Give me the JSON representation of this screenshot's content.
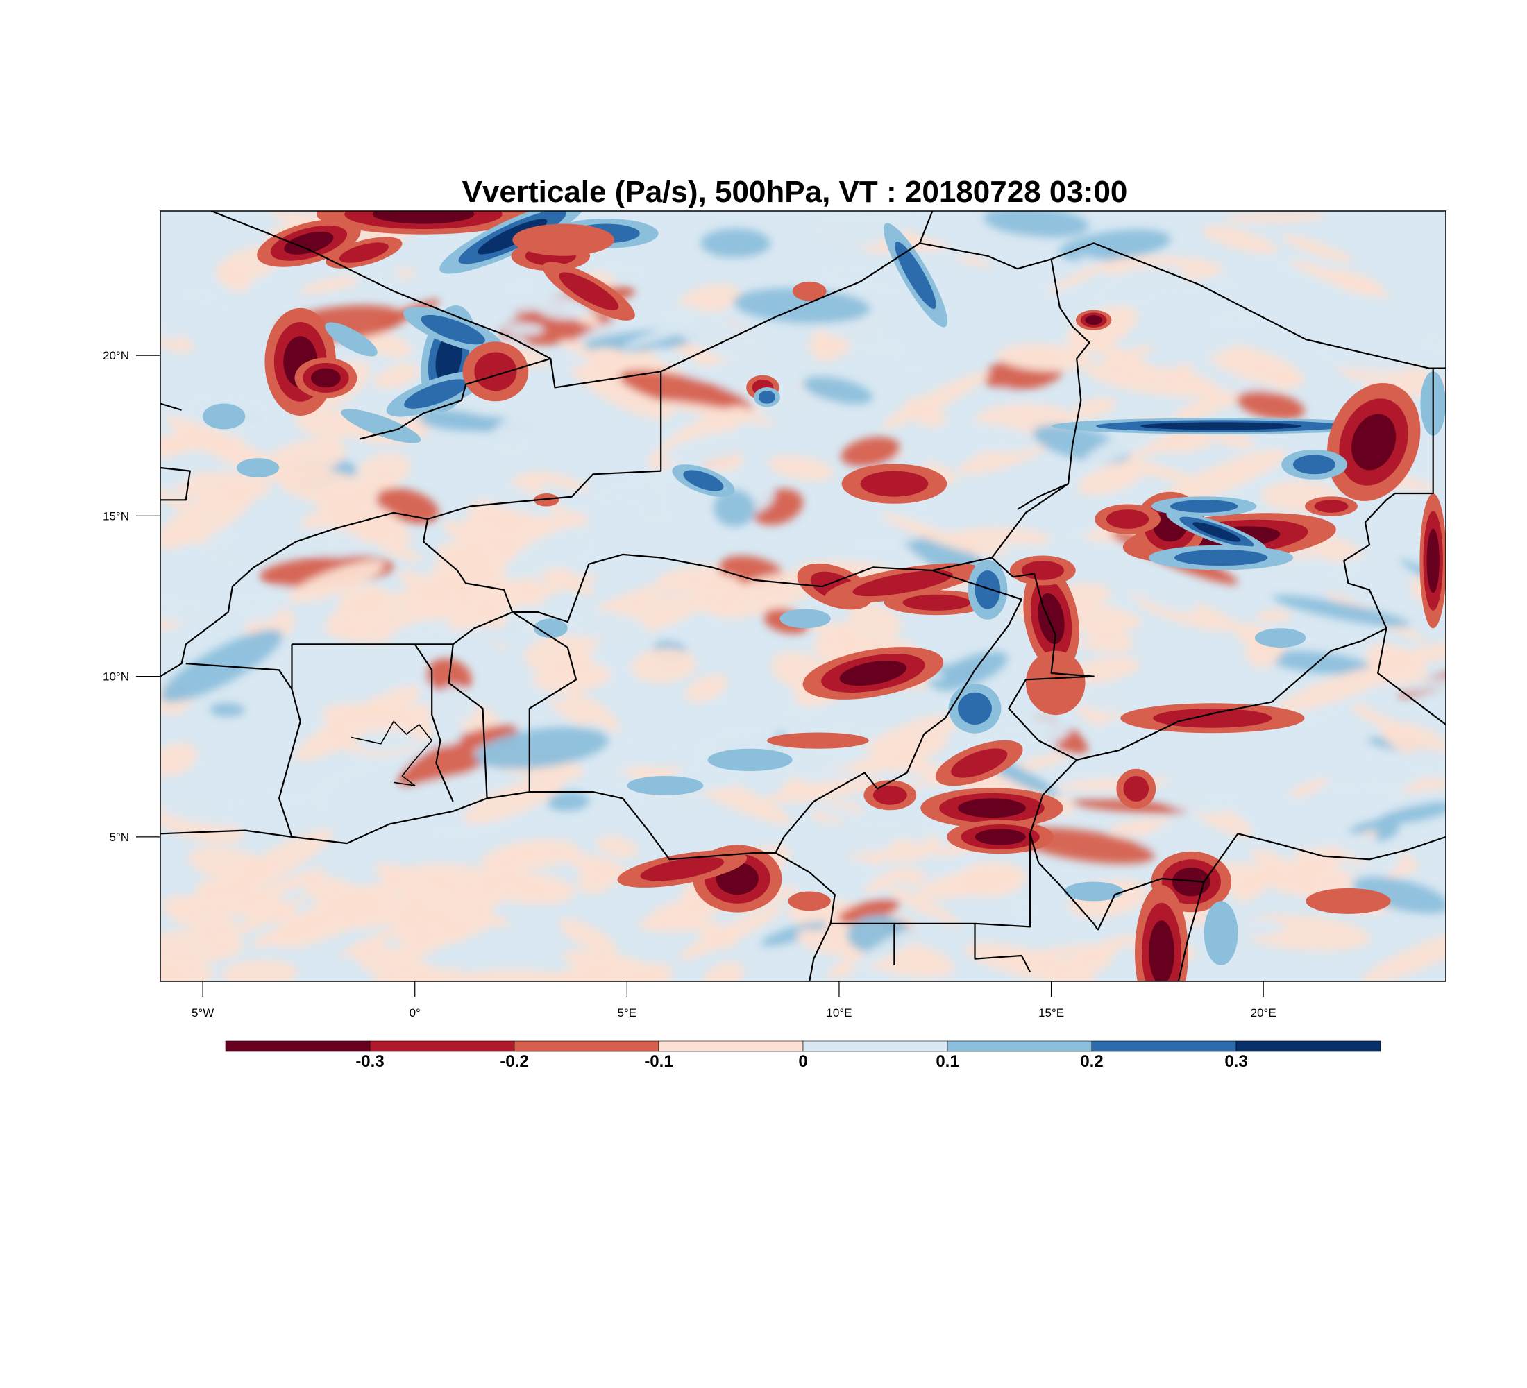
{
  "title": "Vverticale (Pa/s), 500hPa, VT : 20180728  03:00",
  "colors": {
    "background": "#ffffff",
    "frame": "#000000",
    "border": "#000000",
    "levels": [
      "#67001f",
      "#b2182b",
      "#d6604d",
      "#fbe0d3",
      "#d9e8f2",
      "#8cbfdc",
      "#2d6cac",
      "#08306b"
    ]
  },
  "map": {
    "projection": "lat-lon",
    "lon_range": [
      -6,
      24.3
    ],
    "lat_range": [
      0.5,
      24.5
    ],
    "lon_ticks": [
      {
        "value": -5,
        "label": "5°W"
      },
      {
        "value": 0,
        "label": "0°"
      },
      {
        "value": 5,
        "label": "5°E"
      },
      {
        "value": 10,
        "label": "10°E"
      },
      {
        "value": 15,
        "label": "15°E"
      },
      {
        "value": 20,
        "label": "20°E"
      }
    ],
    "lat_ticks": [
      {
        "value": 5,
        "label": "5°N"
      },
      {
        "value": 10,
        "label": "10°N"
      },
      {
        "value": 15,
        "label": "15°N"
      },
      {
        "value": 20,
        "label": "20°N"
      }
    ]
  },
  "colorbar": {
    "bounds": [
      -0.4,
      -0.3,
      -0.2,
      -0.1,
      0,
      0.1,
      0.2,
      0.3,
      0.4
    ],
    "labels": [
      "-0.3",
      "-0.2",
      "-0.1",
      "0",
      "0.1",
      "0.2",
      "0.3"
    ]
  },
  "field_features": [
    {
      "type": "patch",
      "lon": -2.7,
      "lat": 19.8,
      "value": -0.35,
      "rx": 0.4,
      "ry": 0.8,
      "rot": 0
    },
    {
      "type": "patch",
      "lon": -2.1,
      "lat": 19.3,
      "value": -0.32,
      "rx": 0.35,
      "ry": 0.3,
      "rot": 0
    },
    {
      "type": "patch",
      "lon": -2.5,
      "lat": 23.5,
      "value": -0.32,
      "rx": 0.6,
      "ry": 0.3,
      "rot": -15
    },
    {
      "type": "patch",
      "lon": -1.2,
      "lat": 23.2,
      "value": -0.22,
      "rx": 0.6,
      "ry": 0.25,
      "rot": -15
    },
    {
      "type": "patch",
      "lon": 0.2,
      "lat": 24.4,
      "value": -0.32,
      "rx": 1.2,
      "ry": 0.3,
      "rot": 0
    },
    {
      "type": "patch",
      "lon": 0.8,
      "lat": 19.9,
      "value": 0.32,
      "rx": 0.3,
      "ry": 0.8,
      "rot": 10
    },
    {
      "type": "patch",
      "lon": 0.5,
      "lat": 18.8,
      "value": 0.2,
      "rx": 0.8,
      "ry": 0.3,
      "rot": -20
    },
    {
      "type": "patch",
      "lon": 0.9,
      "lat": 20.8,
      "value": 0.2,
      "rx": 0.8,
      "ry": 0.3,
      "rot": 20
    },
    {
      "type": "patch",
      "lon": -1.5,
      "lat": 20.5,
      "value": 0.15,
      "rx": 0.7,
      "ry": 0.3,
      "rot": 30
    },
    {
      "type": "patch",
      "lon": -0.8,
      "lat": 17.8,
      "value": 0.15,
      "rx": 1.0,
      "ry": 0.3,
      "rot": 20
    },
    {
      "type": "patch",
      "lon": 2.3,
      "lat": 23.7,
      "value": 0.32,
      "rx": 0.9,
      "ry": 0.25,
      "rot": -25
    },
    {
      "type": "patch",
      "lon": 4.5,
      "lat": 23.8,
      "value": 0.25,
      "rx": 0.8,
      "ry": 0.3,
      "rot": 0
    },
    {
      "type": "patch",
      "lon": 3.2,
      "lat": 23.1,
      "value": -0.25,
      "rx": 0.6,
      "ry": 0.3,
      "rot": 0
    },
    {
      "type": "patch",
      "lon": 4.1,
      "lat": 22.0,
      "value": -0.22,
      "rx": 0.8,
      "ry": 0.3,
      "rot": 30
    },
    {
      "type": "patch",
      "lon": 1.9,
      "lat": 19.5,
      "value": -0.22,
      "rx": 0.5,
      "ry": 0.6,
      "rot": 0
    },
    {
      "type": "patch",
      "lon": 3.5,
      "lat": 23.6,
      "value": -0.18,
      "rx": 1.2,
      "ry": 0.5,
      "rot": 0
    },
    {
      "type": "patch",
      "lon": 9.3,
      "lat": 22.0,
      "value": -0.15,
      "rx": 0.4,
      "ry": 0.3,
      "rot": 0
    },
    {
      "type": "patch",
      "lon": 11.8,
      "lat": 22.5,
      "value": 0.2,
      "rx": 0.2,
      "ry": 1.2,
      "rot": -30
    },
    {
      "type": "patch",
      "lon": 16.0,
      "lat": 21.1,
      "value": -0.3,
      "rx": 0.2,
      "ry": 0.15,
      "rot": 0
    },
    {
      "type": "patch",
      "lon": 8.2,
      "lat": 19.0,
      "value": -0.25,
      "rx": 0.25,
      "ry": 0.25,
      "rot": 0
    },
    {
      "type": "patch",
      "lon": 8.3,
      "lat": 18.7,
      "value": 0.22,
      "rx": 0.2,
      "ry": 0.2,
      "rot": 0
    },
    {
      "type": "patch",
      "lon": 19.0,
      "lat": 17.8,
      "value": 0.33,
      "rx": 1.9,
      "ry": 0.12,
      "rot": 0
    },
    {
      "type": "patch",
      "lon": 22.6,
      "lat": 17.3,
      "value": -0.32,
      "rx": 0.5,
      "ry": 0.9,
      "rot": 20
    },
    {
      "type": "patch",
      "lon": 19.2,
      "lat": 14.3,
      "value": -0.33,
      "rx": 1.2,
      "ry": 0.35,
      "rot": -5
    },
    {
      "type": "patch",
      "lon": 17.8,
      "lat": 14.7,
      "value": -0.32,
      "rx": 0.4,
      "ry": 0.5,
      "rot": 0
    },
    {
      "type": "patch",
      "lon": 18.9,
      "lat": 14.5,
      "value": 0.3,
      "rx": 0.6,
      "ry": 0.15,
      "rot": 20
    },
    {
      "type": "patch",
      "lon": 19.0,
      "lat": 13.7,
      "value": 0.28,
      "rx": 1.1,
      "ry": 0.25,
      "rot": 0
    },
    {
      "type": "patch",
      "lon": 18.6,
      "lat": 15.3,
      "value": 0.25,
      "rx": 0.8,
      "ry": 0.2,
      "rot": 0
    },
    {
      "type": "patch",
      "lon": 16.8,
      "lat": 14.9,
      "value": -0.25,
      "rx": 0.5,
      "ry": 0.3,
      "rot": 0
    },
    {
      "type": "patch",
      "lon": 21.2,
      "lat": 16.6,
      "value": 0.22,
      "rx": 0.5,
      "ry": 0.3,
      "rot": 0
    },
    {
      "type": "patch",
      "lon": 21.6,
      "lat": 15.3,
      "value": -0.25,
      "rx": 0.4,
      "ry": 0.2,
      "rot": 0
    },
    {
      "type": "patch",
      "lon": 24.0,
      "lat": 13.6,
      "value": -0.32,
      "rx": 0.15,
      "ry": 1.0,
      "rot": 0
    },
    {
      "type": "patch",
      "lon": 24.0,
      "lat": 18.5,
      "value": 0.15,
      "rx": 0.3,
      "ry": 1.0,
      "rot": 0
    },
    {
      "type": "patch",
      "lon": 9.9,
      "lat": 12.8,
      "value": -0.28,
      "rx": 0.6,
      "ry": 0.4,
      "rot": 20
    },
    {
      "type": "patch",
      "lon": 11.5,
      "lat": 12.9,
      "value": -0.25,
      "rx": 1.2,
      "ry": 0.3,
      "rot": -10
    },
    {
      "type": "patch",
      "lon": 12.3,
      "lat": 12.3,
      "value": -0.22,
      "rx": 0.8,
      "ry": 0.25,
      "rot": 0
    },
    {
      "type": "patch",
      "lon": 10.8,
      "lat": 10.1,
      "value": -0.35,
      "rx": 0.8,
      "ry": 0.35,
      "rot": -10
    },
    {
      "type": "patch",
      "lon": 11.3,
      "lat": 16.0,
      "value": -0.2,
      "rx": 0.8,
      "ry": 0.4,
      "rot": 0
    },
    {
      "type": "patch",
      "lon": 13.5,
      "lat": 12.7,
      "value": 0.2,
      "rx": 0.3,
      "ry": 0.6,
      "rot": 0
    },
    {
      "type": "patch",
      "lon": 15.0,
      "lat": 11.8,
      "value": -0.3,
      "rx": 0.3,
      "ry": 0.8,
      "rot": -10
    },
    {
      "type": "patch",
      "lon": 14.8,
      "lat": 13.3,
      "value": -0.2,
      "rx": 0.5,
      "ry": 0.3,
      "rot": 0
    },
    {
      "type": "patch",
      "lon": 13.2,
      "lat": 9.0,
      "value": 0.2,
      "rx": 0.4,
      "ry": 0.5,
      "rot": 0
    },
    {
      "type": "patch",
      "lon": 15.1,
      "lat": 9.8,
      "value": -0.15,
      "rx": 0.7,
      "ry": 1.0,
      "rot": 0
    },
    {
      "type": "patch",
      "lon": 13.3,
      "lat": 7.3,
      "value": -0.25,
      "rx": 0.7,
      "ry": 0.35,
      "rot": -20
    },
    {
      "type": "patch",
      "lon": 13.6,
      "lat": 5.9,
      "value": -0.32,
      "rx": 0.8,
      "ry": 0.3,
      "rot": 0
    },
    {
      "type": "patch",
      "lon": 13.8,
      "lat": 5.0,
      "value": -0.3,
      "rx": 0.6,
      "ry": 0.25,
      "rot": 0
    },
    {
      "type": "patch",
      "lon": 11.2,
      "lat": 6.3,
      "value": -0.22,
      "rx": 0.4,
      "ry": 0.3,
      "rot": 0
    },
    {
      "type": "patch",
      "lon": 7.6,
      "lat": 3.7,
      "value": -0.35,
      "rx": 0.5,
      "ry": 0.5,
      "rot": 0
    },
    {
      "type": "patch",
      "lon": 6.3,
      "lat": 4.0,
      "value": -0.22,
      "rx": 1.0,
      "ry": 0.3,
      "rot": -10
    },
    {
      "type": "patch",
      "lon": 9.3,
      "lat": 3.0,
      "value": -0.12,
      "rx": 0.5,
      "ry": 0.3,
      "rot": 0
    },
    {
      "type": "patch",
      "lon": 18.3,
      "lat": 3.6,
      "value": -0.32,
      "rx": 0.45,
      "ry": 0.45,
      "rot": 0
    },
    {
      "type": "patch",
      "lon": 17.6,
      "lat": 1.4,
      "value": -0.32,
      "rx": 0.3,
      "ry": 1.0,
      "rot": 0
    },
    {
      "type": "patch",
      "lon": 19.0,
      "lat": 2.0,
      "value": 0.15,
      "rx": 0.4,
      "ry": 1.0,
      "rot": 0
    },
    {
      "type": "patch",
      "lon": 18.8,
      "lat": 8.7,
      "value": -0.25,
      "rx": 1.4,
      "ry": 0.3,
      "rot": 0
    },
    {
      "type": "patch",
      "lon": 20.4,
      "lat": 11.2,
      "value": 0.15,
      "rx": 0.6,
      "ry": 0.3,
      "rot": 0
    },
    {
      "type": "patch",
      "lon": 17.0,
      "lat": 6.5,
      "value": -0.2,
      "rx": 0.3,
      "ry": 0.4,
      "rot": 0
    },
    {
      "type": "patch",
      "lon": 7.9,
      "lat": 7.4,
      "value": 0.15,
      "rx": 1.0,
      "ry": 0.35,
      "rot": 0
    },
    {
      "type": "patch",
      "lon": 5.9,
      "lat": 6.6,
      "value": 0.15,
      "rx": 0.9,
      "ry": 0.3,
      "rot": 0
    },
    {
      "type": "patch",
      "lon": 3.2,
      "lat": 11.5,
      "value": 0.15,
      "rx": 0.4,
      "ry": 0.3,
      "rot": 0
    },
    {
      "type": "patch",
      "lon": 9.2,
      "lat": 11.8,
      "value": 0.18,
      "rx": 0.6,
      "ry": 0.3,
      "rot": 0
    },
    {
      "type": "patch",
      "lon": 6.8,
      "lat": 16.1,
      "value": 0.2,
      "rx": 0.5,
      "ry": 0.25,
      "rot": 20
    },
    {
      "type": "patch",
      "lon": 3.1,
      "lat": 15.5,
      "value": -0.18,
      "rx": 0.3,
      "ry": 0.2,
      "rot": 0
    },
    {
      "type": "patch",
      "lon": 9.5,
      "lat": 8.0,
      "value": -0.15,
      "rx": 1.2,
      "ry": 0.25,
      "rot": 0
    },
    {
      "type": "patch",
      "lon": 16.0,
      "lat": 3.3,
      "value": 0.15,
      "rx": 0.7,
      "ry": 0.3,
      "rot": 0
    },
    {
      "type": "patch",
      "lon": 22.0,
      "lat": 3.0,
      "value": -0.12,
      "rx": 1.0,
      "ry": 0.4,
      "rot": 0
    },
    {
      "type": "patch",
      "lon": -3.7,
      "lat": 16.5,
      "value": 0.15,
      "rx": 0.5,
      "ry": 0.3,
      "rot": 0
    },
    {
      "type": "patch",
      "lon": -4.5,
      "lat": 18.1,
      "value": 0.18,
      "rx": 0.5,
      "ry": 0.4,
      "rot": 0
    }
  ]
}
